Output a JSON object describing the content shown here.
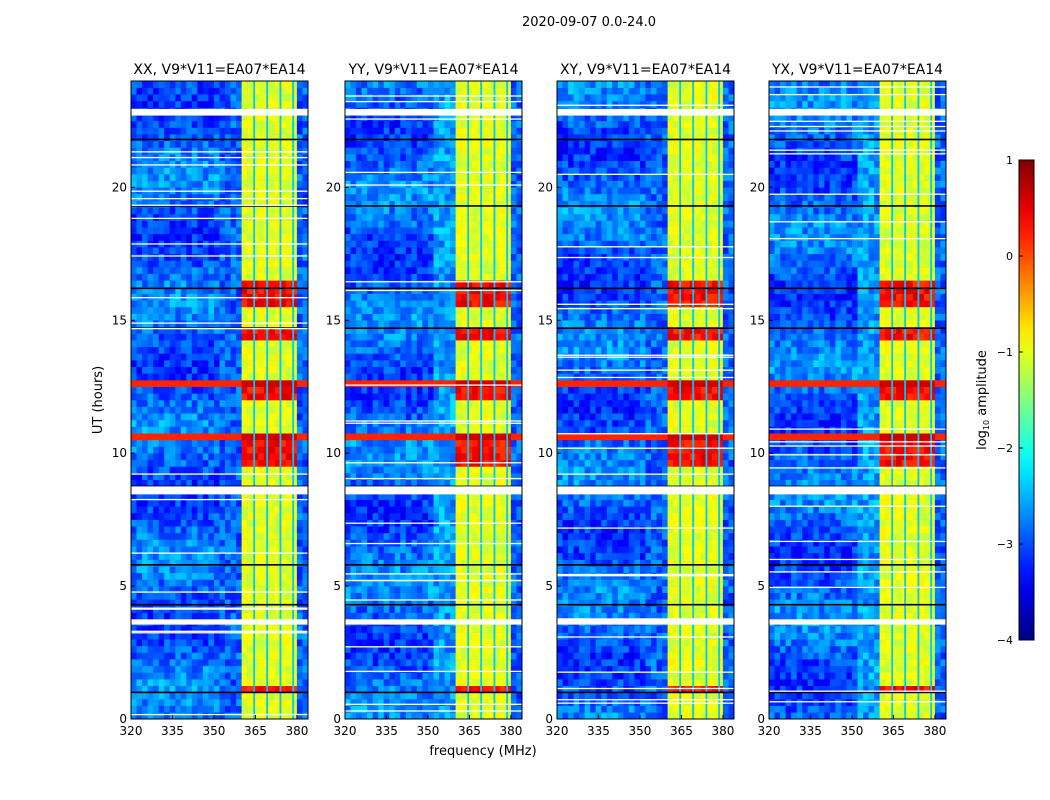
{
  "chart_data": {
    "type": "heatmap",
    "suptitle": "2020-09-07 0.0-24.0",
    "xlabel": "frequency (MHz)",
    "ylabel": "UT (hours)",
    "xlim": [
      320,
      384
    ],
    "ylim": [
      0,
      24
    ],
    "xticks": [
      320,
      335,
      350,
      365,
      380
    ],
    "yticks": [
      0,
      5,
      10,
      15,
      20
    ],
    "panels": [
      {
        "title": "XX, V9*V11=EA07*EA14"
      },
      {
        "title": "YY, V9*V11=EA07*EA14"
      },
      {
        "title": "XY, V9*V11=EA07*EA14"
      },
      {
        "title": "YX, V9*V11=EA07*EA14"
      }
    ],
    "colorbar": {
      "label": "log10 amplitude",
      "label_main": "log",
      "label_sub": "10",
      "label_tail": " amplitude",
      "range": [
        -4,
        1
      ],
      "ticks": [
        "1",
        "0",
        "−1",
        "−2",
        "−3",
        "−4"
      ],
      "tick_values": [
        1,
        0,
        -1,
        -2,
        -3,
        -4
      ],
      "colormap": "jet"
    },
    "model": {
      "background_level": -2.9,
      "band_mhz": [
        360.5,
        380
      ],
      "band_level": -1.0,
      "band_gaps_mhz": [
        364.5,
        369.2,
        374,
        378.6
      ],
      "flagged_hours": [
        [
          22.7,
          22.95
        ],
        [
          8.45,
          8.75
        ],
        [
          3.55,
          3.75
        ]
      ],
      "hot_band_hours": [
        [
          15.4,
          16.6
        ],
        [
          14.25,
          14.7
        ],
        [
          11.9,
          12.75
        ],
        [
          9.5,
          10.75
        ],
        [
          1.1,
          1.3
        ]
      ],
      "broadband_rfi_hours": [
        [
          12.55,
          12.75
        ],
        [
          10.55,
          10.75
        ]
      ],
      "dropout_hours": [
        21.8,
        19.3,
        14.7,
        8.75,
        16.2,
        5.8,
        4.3,
        1.0
      ]
    }
  }
}
